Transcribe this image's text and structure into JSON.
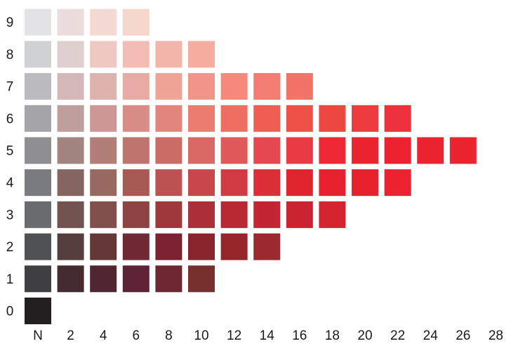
{
  "chart_data": {
    "type": "heatmap",
    "title": "",
    "xlabel": "",
    "ylabel": "",
    "x_ticks": [
      "N",
      "2",
      "4",
      "6",
      "8",
      "10",
      "12",
      "14",
      "16",
      "18",
      "20",
      "22",
      "24",
      "26",
      "28"
    ],
    "y_ticks": [
      "0",
      "1",
      "2",
      "3",
      "4",
      "5",
      "6",
      "7",
      "8",
      "9"
    ],
    "grid": false,
    "rows": [
      {
        "value": 9,
        "colors": [
          "#e3e3e5",
          "#ecdcdc",
          "#f5dad3",
          "#f5d7cd"
        ]
      },
      {
        "value": 8,
        "colors": [
          "#d0d1d3",
          "#e0cfcf",
          "#efc8c2",
          "#f2bcb4",
          "#f3b5aa",
          "#f4ad9f"
        ]
      },
      {
        "value": 7,
        "colors": [
          "#bbbbbd",
          "#d4b8b8",
          "#deb2ad",
          "#e8aaa4",
          "#f0a498",
          "#f2948a",
          "#f58a7c",
          "#f47d71",
          "#f27367"
        ]
      },
      {
        "value": 6,
        "colors": [
          "#a5a5a8",
          "#bf9e9e",
          "#cc9794",
          "#d98d87",
          "#e2857c",
          "#ec7c70",
          "#ef6e62",
          "#ef5e53",
          "#ee5147",
          "#ee4640",
          "#ee3b3d",
          "#ed323d"
        ]
      },
      {
        "value": 5,
        "colors": [
          "#8f8f92",
          "#a3857f",
          "#b27f78",
          "#bd756c",
          "#cc6c67",
          "#d96764",
          "#e15a59",
          "#e64850",
          "#ea3b45",
          "#ed2733",
          "#ec2430",
          "#ec2230",
          "#ec2430",
          "#ec2430"
        ]
      },
      {
        "value": 4,
        "colors": [
          "#7a7b7e",
          "#85655f",
          "#986960",
          "#a65a52",
          "#bd5252",
          "#c8474b",
          "#d13a43",
          "#db2f38",
          "#e1252f",
          "#e7222e",
          "#e9212d",
          "#ec2230"
        ]
      },
      {
        "value": 3,
        "colors": [
          "#6a6c6e",
          "#735350",
          "#81504b",
          "#8e4343",
          "#9e383d",
          "#ac2f39",
          "#b82934",
          "#c32532",
          "#cc2330",
          "#d42430"
        ]
      },
      {
        "value": 2,
        "colors": [
          "#4f5153",
          "#563d3e",
          "#643838",
          "#722936",
          "#7c2231",
          "#89242c",
          "#94262c",
          "#9c292f"
        ]
      },
      {
        "value": 1,
        "colors": [
          "#404043",
          "#432b2f",
          "#522631",
          "#5e2336",
          "#6e2833",
          "#78302f"
        ]
      },
      {
        "value": 0,
        "colors": [
          "#221f20"
        ]
      }
    ]
  }
}
